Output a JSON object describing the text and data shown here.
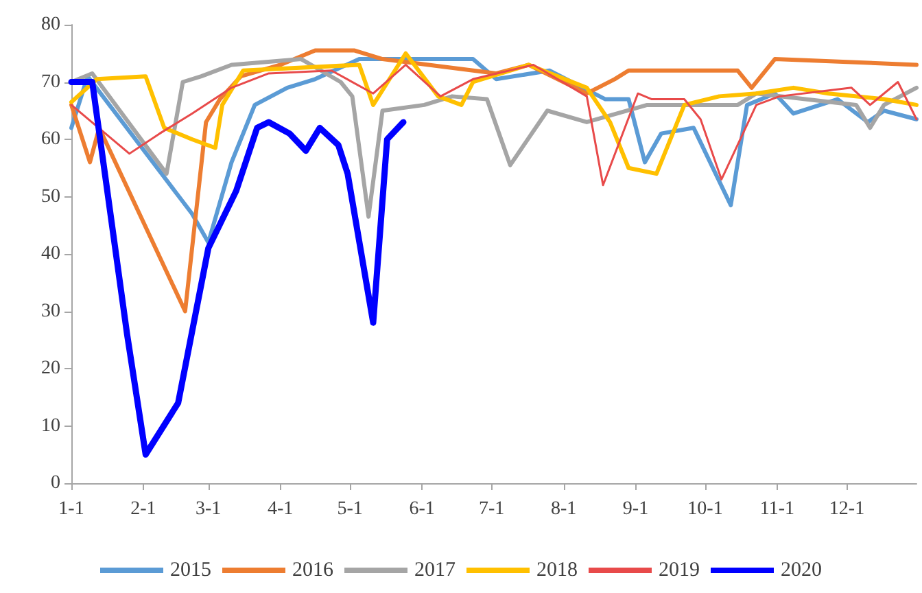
{
  "chart_data": {
    "type": "line",
    "xlim": [
      "--01-01",
      "--12-31"
    ],
    "xticks": [
      {
        "value": "--01-01",
        "label": "1-1"
      },
      {
        "value": "--02-01",
        "label": "2-1"
      },
      {
        "value": "--03-01",
        "label": "3-1"
      },
      {
        "value": "--04-01",
        "label": "4-1"
      },
      {
        "value": "--05-01",
        "label": "5-1"
      },
      {
        "value": "--06-01",
        "label": "6-1"
      },
      {
        "value": "--07-01",
        "label": "7-1"
      },
      {
        "value": "--08-01",
        "label": "8-1"
      },
      {
        "value": "--09-01",
        "label": "9-1"
      },
      {
        "value": "--10-01",
        "label": "10-1"
      },
      {
        "value": "--11-01",
        "label": "11-1"
      },
      {
        "value": "--12-01",
        "label": "12-1"
      }
    ],
    "ylim": [
      0,
      80
    ],
    "yticks": [
      0,
      10,
      20,
      30,
      40,
      50,
      60,
      70,
      80
    ],
    "grid": false,
    "legend": "bottom",
    "marker": "none",
    "series": [
      {
        "name": "2015",
        "color": "#5b9bd5",
        "x": [
          "--01-01",
          "--01-08",
          "--02-22",
          "--03-01",
          "--03-11",
          "--03-21",
          "--04-04",
          "--04-16",
          "--05-05",
          "--06-23",
          "--07-03",
          "--07-26",
          "--08-19",
          "--08-29",
          "--09-05",
          "--09-12",
          "--09-26",
          "--10-12",
          "--10-19",
          "--10-31",
          "--11-08",
          "--11-27",
          "--12-10",
          "--12-17",
          "--12-31"
        ],
        "values": [
          62,
          71,
          47,
          42,
          56,
          66,
          69,
          70.5,
          74,
          74,
          70.5,
          72,
          67,
          67,
          56,
          61,
          62,
          48.5,
          66,
          68,
          64.5,
          67,
          63,
          65,
          63.5
        ]
      },
      {
        "name": "2016",
        "color": "#ed7d31",
        "x": [
          "--01-01",
          "--01-09",
          "--01-13",
          "--02-19",
          "--02-28",
          "--03-06",
          "--03-15",
          "--04-01",
          "--04-16",
          "--05-03",
          "--05-15",
          "--07-03",
          "--07-17",
          "--08-11",
          "--08-23",
          "--08-29",
          "--10-15",
          "--10-21",
          "--10-31",
          "--12-31"
        ],
        "values": [
          66,
          56,
          62,
          30,
          63,
          67,
          71,
          73,
          75.5,
          75.5,
          74,
          71.5,
          73,
          68,
          70.5,
          72,
          72,
          69,
          74,
          73
        ]
      },
      {
        "name": "2017",
        "color": "#a5a5a5",
        "x": [
          "--01-01",
          "--01-10",
          "--02-11",
          "--02-18",
          "--02-26",
          "--03-11",
          "--04-10",
          "--04-27",
          "--05-02",
          "--05-09",
          "--05-15",
          "--06-02",
          "--06-14",
          "--06-29",
          "--07-09",
          "--07-25",
          "--08-11",
          "--09-06",
          "--10-15",
          "--10-23",
          "--12-05",
          "--12-11",
          "--12-17",
          "--12-31"
        ],
        "values": [
          70,
          71.5,
          54,
          70,
          71,
          73,
          74,
          70,
          67.5,
          46.5,
          65,
          66,
          67.5,
          67,
          55.5,
          65,
          63,
          66,
          66,
          68,
          66,
          62,
          66,
          69
        ]
      },
      {
        "name": "2018",
        "color": "#ffc000",
        "x": [
          "--01-01",
          "--01-12",
          "--02-02",
          "--02-10",
          "--02-22",
          "--03-04",
          "--03-07",
          "--03-16",
          "--05-05",
          "--05-11",
          "--05-25",
          "--06-08",
          "--06-18",
          "--06-23",
          "--07-17",
          "--08-11",
          "--08-21",
          "--08-29",
          "--09-10",
          "--09-22",
          "--10-07",
          "--10-23",
          "--11-08",
          "--11-23",
          "--12-17",
          "--12-31"
        ],
        "values": [
          66.5,
          70.5,
          71,
          62,
          60,
          58.5,
          66,
          72,
          73,
          66,
          75,
          67.5,
          66,
          70,
          73,
          69,
          63,
          55,
          54,
          66,
          67.5,
          68,
          69,
          68,
          67,
          66
        ]
      },
      {
        "name": "2019",
        "color": "#e84a4a",
        "x": [
          "--01-01",
          "--01-26",
          "--02-08",
          "--02-22",
          "--03-11",
          "--03-27",
          "--04-23",
          "--05-11",
          "--05-25",
          "--06-09",
          "--06-23",
          "--07-19",
          "--08-11",
          "--08-18",
          "--09-02",
          "--09-08",
          "--09-22",
          "--09-29",
          "--10-08",
          "--10-23",
          "--11-02",
          "--12-03",
          "--12-11",
          "--12-23",
          "--12-31"
        ],
        "values": [
          66,
          57.5,
          61,
          64.5,
          69,
          71.5,
          72,
          68,
          73,
          67.5,
          70.5,
          73,
          67.5,
          52,
          68,
          67,
          67,
          63.5,
          53,
          66,
          67.5,
          69,
          66,
          70,
          63.5
        ]
      },
      {
        "name": "2020",
        "color": "#0000ff",
        "x": [
          "--01-01",
          "--01-10",
          "--01-25",
          "--02-02",
          "--02-16",
          "--03-01",
          "--03-13",
          "--03-22",
          "--03-27",
          "--04-05",
          "--04-12",
          "--04-18",
          "--04-26",
          "--04-30",
          "--05-11",
          "--05-17",
          "--05-24"
        ],
        "values": [
          70,
          70,
          26,
          5,
          14,
          41,
          51,
          62,
          63,
          61,
          58,
          62,
          59,
          54,
          28,
          60,
          63
        ]
      }
    ]
  }
}
